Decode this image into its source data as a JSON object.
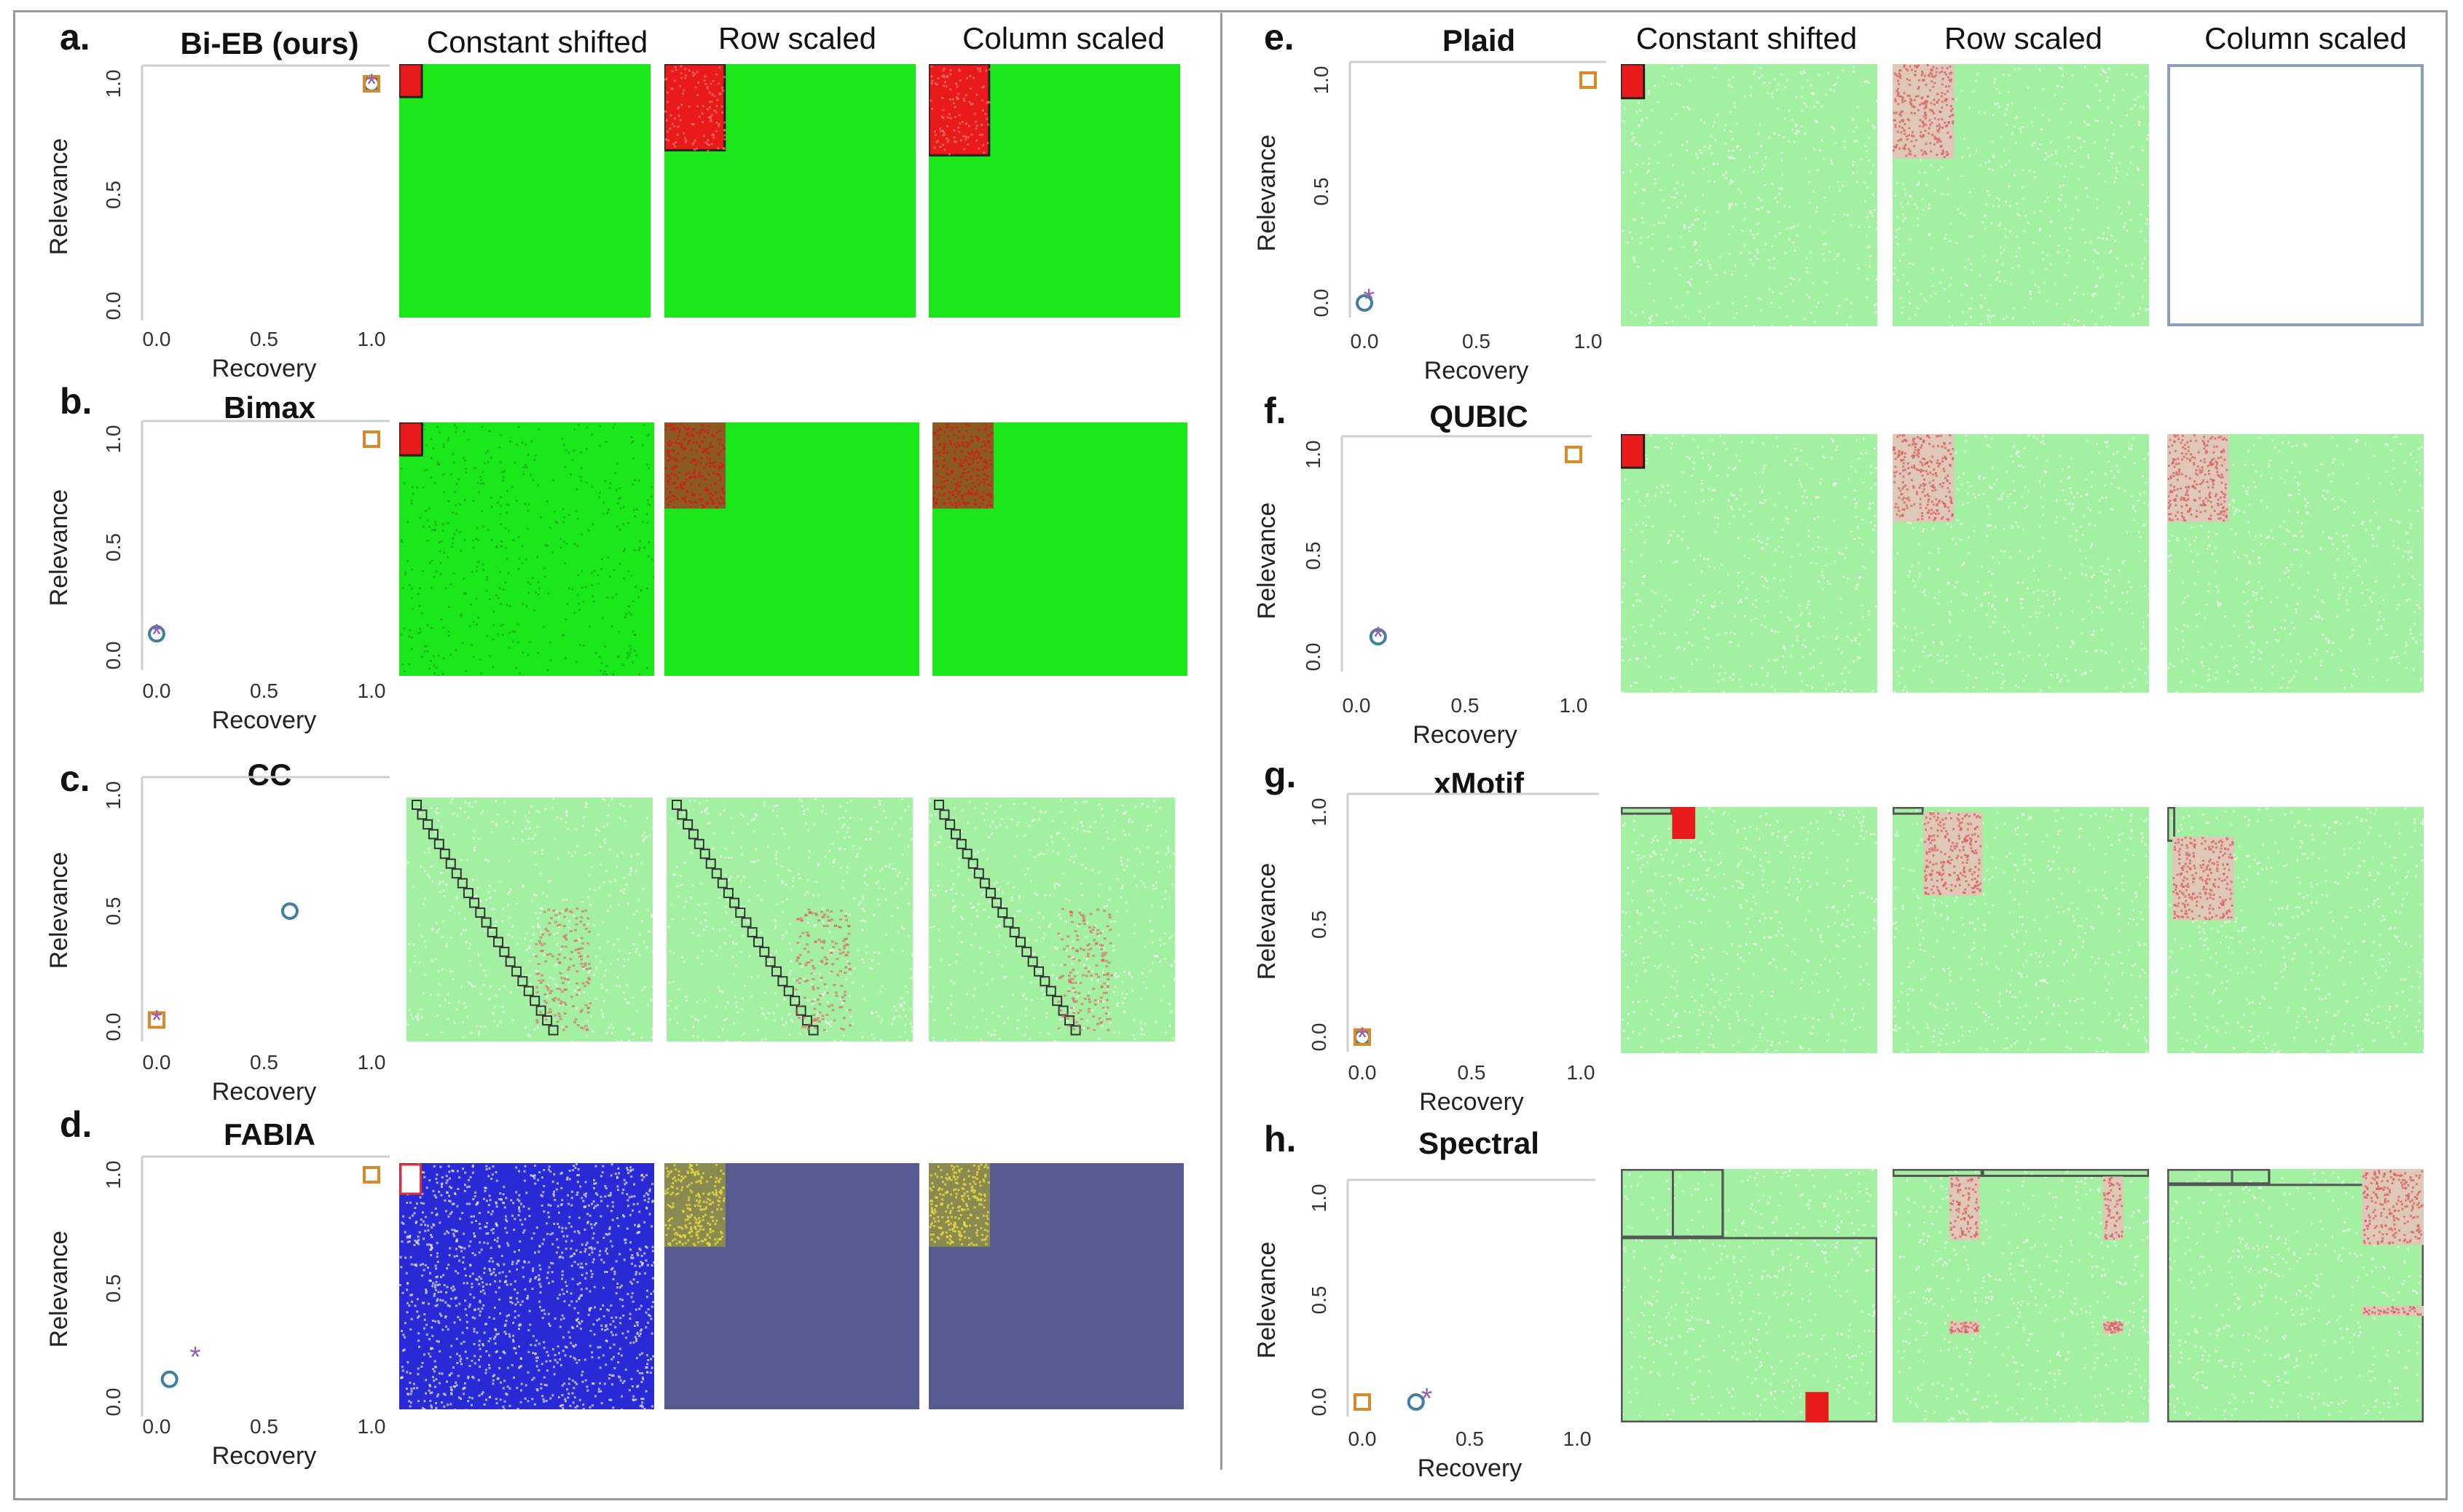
{
  "columns": [
    "Constant shifted",
    "Row scaled",
    "Column scaled"
  ],
  "colors": {
    "bright_green": "#1be81b",
    "light_green": "#a3f0a3",
    "blue": "#2929d6",
    "slate": "#575a90",
    "red": "#e81a1a",
    "circle": "#3f7fa0",
    "square": "#d88a2a",
    "star": "#9a60b0"
  },
  "chart_data": [
    {
      "type": "scatter",
      "panel": "a.",
      "title": "Bi-EB (ours)",
      "xlabel": "Recovery",
      "ylabel": "Relevance",
      "xlim": [
        0,
        1
      ],
      "ylim": [
        0,
        1
      ],
      "xticks": [
        "0.0",
        "0.5",
        "1.0"
      ],
      "yticks": [
        "0.0",
        "0.5",
        "1.0"
      ],
      "series": [
        {
          "marker": "circle",
          "x": [
            1.0
          ],
          "y": [
            1.0
          ]
        },
        {
          "marker": "square",
          "x": [
            1.0
          ],
          "y": [
            1.0
          ]
        },
        {
          "marker": "star",
          "x": [
            1.0
          ],
          "y": [
            1.0
          ]
        }
      ],
      "heatmaps": [
        {
          "bg": "bright_green",
          "noise": 0,
          "blocks": [
            {
              "x": 0,
              "y": 0,
              "w": 0.09,
              "h": 0.13,
              "c": "red",
              "o": true
            }
          ]
        },
        {
          "bg": "bright_green",
          "noise": 0,
          "blocks": [
            {
              "x": 0,
              "y": 0,
              "w": 0.24,
              "h": 0.34,
              "c": "red",
              "o": true,
              "speckle": true
            }
          ]
        },
        {
          "bg": "bright_green",
          "noise": 0,
          "blocks": [
            {
              "x": 0,
              "y": 0,
              "w": 0.24,
              "h": 0.36,
              "c": "red",
              "o": true,
              "speckle": true
            }
          ]
        }
      ]
    },
    {
      "type": "scatter",
      "panel": "b.",
      "title": "Bimax",
      "xlabel": "Recovery",
      "ylabel": "Relevance",
      "xlim": [
        0,
        1
      ],
      "ylim": [
        0,
        1
      ],
      "xticks": [
        "0.0",
        "0.5",
        "1.0"
      ],
      "yticks": [
        "0.0",
        "0.5",
        "1.0"
      ],
      "series": [
        {
          "marker": "circle",
          "x": [
            0.0
          ],
          "y": [
            0.1
          ]
        },
        {
          "marker": "square",
          "x": [
            1.0
          ],
          "y": [
            1.0
          ]
        },
        {
          "marker": "star",
          "x": [
            0.0
          ],
          "y": [
            0.1
          ]
        }
      ],
      "heatmaps": [
        {
          "bg": "bright_green",
          "noise": 1,
          "blocks": [
            {
              "x": 0,
              "y": 0,
              "w": 0.09,
              "h": 0.13,
              "c": "red",
              "o": true
            }
          ]
        },
        {
          "bg": "bright_green",
          "noise": 0,
          "blocks": [
            {
              "x": 0,
              "y": 0,
              "w": 0.24,
              "h": 0.34,
              "c": "mixed_rg"
            }
          ]
        },
        {
          "bg": "bright_green",
          "noise": 0,
          "blocks": [
            {
              "x": 0,
              "y": 0,
              "w": 0.24,
              "h": 0.34,
              "c": "mixed_rg"
            }
          ]
        }
      ]
    },
    {
      "type": "scatter",
      "panel": "c.",
      "title": "CC",
      "xlabel": "Recovery",
      "ylabel": "Relevance",
      "xlim": [
        0,
        1
      ],
      "ylim": [
        0,
        1
      ],
      "xticks": [
        "0.0",
        "0.5",
        "1.0"
      ],
      "yticks": [
        "0.0",
        "0.5",
        "1.0"
      ],
      "series": [
        {
          "marker": "circle",
          "x": [
            0.62
          ],
          "y": [
            0.5
          ]
        },
        {
          "marker": "square",
          "x": [
            0.0
          ],
          "y": [
            0.03
          ]
        },
        {
          "marker": "star",
          "x": [
            0.0
          ],
          "y": [
            0.03
          ]
        }
      ],
      "heatmaps": [
        {
          "bg": "light_green",
          "noise": 2,
          "stair": true,
          "blocks": []
        },
        {
          "bg": "light_green",
          "noise": 2,
          "stair": true,
          "blocks": []
        },
        {
          "bg": "light_green",
          "noise": 2,
          "stair": true,
          "blocks": []
        }
      ]
    },
    {
      "type": "scatter",
      "panel": "d.",
      "title": "FABIA",
      "xlabel": "Recovery",
      "ylabel": "Relevance",
      "xlim": [
        0,
        1
      ],
      "ylim": [
        0,
        1
      ],
      "xticks": [
        "0.0",
        "0.5",
        "1.0"
      ],
      "yticks": [
        "0.0",
        "0.5",
        "1.0"
      ],
      "series": [
        {
          "marker": "circle",
          "x": [
            0.06
          ],
          "y": [
            0.1
          ]
        },
        {
          "marker": "square",
          "x": [
            1.0
          ],
          "y": [
            1.0
          ]
        },
        {
          "marker": "star",
          "x": [
            0.18
          ],
          "y": [
            0.2
          ]
        }
      ],
      "heatmaps": [
        {
          "bg": "blue",
          "noise": 3,
          "blocks": [
            {
              "x": 0,
              "y": 0,
              "w": 0.09,
              "h": 0.13,
              "c": "white_outline"
            }
          ]
        },
        {
          "bg": "slate",
          "noise": 0,
          "blocks": [
            {
              "x": 0,
              "y": 0,
              "w": 0.24,
              "h": 0.34,
              "c": "mixed_yellow"
            }
          ]
        },
        {
          "bg": "slate",
          "noise": 0,
          "blocks": [
            {
              "x": 0,
              "y": 0,
              "w": 0.24,
              "h": 0.34,
              "c": "mixed_yellow"
            }
          ]
        }
      ]
    },
    {
      "type": "scatter",
      "panel": "e.",
      "title": "Plaid",
      "xlabel": "Recovery",
      "ylabel": "Relevance",
      "xlim": [
        0,
        1
      ],
      "ylim": [
        0,
        1
      ],
      "xticks": [
        "0.0",
        "0.5",
        "1.0"
      ],
      "yticks": [
        "0.0",
        "0.5",
        "1.0"
      ],
      "series": [
        {
          "marker": "circle",
          "x": [
            0.0
          ],
          "y": [
            0.0
          ]
        },
        {
          "marker": "square",
          "x": [
            1.0
          ],
          "y": [
            1.0
          ]
        },
        {
          "marker": "star",
          "x": [
            0.02
          ],
          "y": [
            0.02
          ]
        }
      ],
      "heatmaps": [
        {
          "bg": "light_green",
          "noise": 2,
          "blocks": [
            {
              "x": 0,
              "y": 0,
              "w": 0.09,
              "h": 0.13,
              "c": "red",
              "o": true
            }
          ]
        },
        {
          "bg": "light_green",
          "noise": 2,
          "blocks": [
            {
              "x": 0,
              "y": 0,
              "w": 0.24,
              "h": 0.36,
              "c": "mixed_pink"
            }
          ]
        },
        {
          "bg": "empty",
          "noise": 0,
          "blocks": []
        }
      ]
    },
    {
      "type": "scatter",
      "panel": "f.",
      "title": "QUBIC",
      "xlabel": "Recovery",
      "ylabel": "Relevance",
      "xlim": [
        0,
        1
      ],
      "ylim": [
        0,
        1
      ],
      "xticks": [
        "0.0",
        "0.5",
        "1.0"
      ],
      "yticks": [
        "0.0",
        "0.5",
        "1.0"
      ],
      "series": [
        {
          "marker": "circle",
          "x": [
            0.1
          ],
          "y": [
            0.1
          ]
        },
        {
          "marker": "square",
          "x": [
            1.0
          ],
          "y": [
            1.0
          ]
        },
        {
          "marker": "star",
          "x": [
            0.1
          ],
          "y": [
            0.1
          ]
        }
      ],
      "heatmaps": [
        {
          "bg": "light_green",
          "noise": 2,
          "blocks": [
            {
              "x": 0,
              "y": 0,
              "w": 0.09,
              "h": 0.13,
              "c": "red",
              "o": true
            }
          ]
        },
        {
          "bg": "light_green",
          "noise": 2,
          "blocks": [
            {
              "x": 0,
              "y": 0,
              "w": 0.24,
              "h": 0.34,
              "c": "mixed_pink"
            }
          ]
        },
        {
          "bg": "light_green",
          "noise": 2,
          "blocks": [
            {
              "x": 0,
              "y": 0,
              "w": 0.24,
              "h": 0.34,
              "c": "mixed_pink"
            }
          ]
        }
      ]
    },
    {
      "type": "scatter",
      "panel": "g.",
      "title": "xMotif",
      "xlabel": "Recovery",
      "ylabel": "Relevance",
      "xlim": [
        0,
        1
      ],
      "ylim": [
        0,
        1
      ],
      "xticks": [
        "0.0",
        "0.5",
        "1.0"
      ],
      "yticks": [
        "0.0",
        "0.5",
        "1.0"
      ],
      "series": [
        {
          "marker": "circle",
          "x": [
            0.0
          ],
          "y": [
            0.0
          ]
        },
        {
          "marker": "square",
          "x": [
            0.0
          ],
          "y": [
            0.0
          ]
        },
        {
          "marker": "star",
          "x": [
            0.0
          ],
          "y": [
            0.0
          ]
        }
      ],
      "heatmaps": [
        {
          "bg": "light_green",
          "noise": 2,
          "blocks": [
            {
              "x": 0,
              "y": 0,
              "w": 0.2,
              "h": 0.03,
              "c": "outline"
            },
            {
              "x": 0.2,
              "y": 0,
              "w": 0.09,
              "h": 0.13,
              "c": "red"
            }
          ]
        },
        {
          "bg": "light_green",
          "noise": 2,
          "blocks": [
            {
              "x": 0,
              "y": 0,
              "w": 0.12,
              "h": 0.03,
              "c": "outline"
            },
            {
              "x": 0.12,
              "y": 0.02,
              "w": 0.23,
              "h": 0.34,
              "c": "mixed_pink"
            }
          ]
        },
        {
          "bg": "light_green",
          "noise": 2,
          "blocks": [
            {
              "x": 0,
              "y": 0,
              "w": 0.03,
              "h": 0.14,
              "c": "outline"
            },
            {
              "x": 0.02,
              "y": 0.12,
              "w": 0.24,
              "h": 0.34,
              "c": "mixed_pink"
            }
          ]
        }
      ]
    },
    {
      "type": "scatter",
      "panel": "h.",
      "title": "Spectral",
      "xlabel": "Recovery",
      "ylabel": "Relevance",
      "xlim": [
        0,
        1
      ],
      "ylim": [
        0,
        1
      ],
      "xticks": [
        "0.0",
        "0.5",
        "1.0"
      ],
      "yticks": [
        "0.0",
        "0.5",
        "1.0"
      ],
      "series": [
        {
          "marker": "circle",
          "x": [
            0.25
          ],
          "y": [
            0.0
          ]
        },
        {
          "marker": "square",
          "x": [
            0.0
          ],
          "y": [
            0.0
          ]
        },
        {
          "marker": "star",
          "x": [
            0.3
          ],
          "y": [
            0.02
          ]
        }
      ],
      "heatmaps": [
        {
          "bg": "light_green",
          "noise": 2,
          "blocks": [
            {
              "x": 0,
              "y": 0,
              "w": 0.4,
              "h": 0.27,
              "c": "outline"
            },
            {
              "x": 0.2,
              "y": 0,
              "w": 0.2,
              "h": 0.27,
              "c": "outline"
            },
            {
              "x": 0,
              "y": 0.27,
              "w": 1,
              "h": 0.73,
              "c": "outline"
            },
            {
              "x": 0.72,
              "y": 0.88,
              "w": 0.09,
              "h": 0.12,
              "c": "red"
            }
          ]
        },
        {
          "bg": "light_green",
          "noise": 2,
          "blocks": [
            {
              "x": 0,
              "y": 0,
              "w": 0.35,
              "h": 0.03,
              "c": "outline"
            },
            {
              "x": 0.35,
              "y": 0,
              "w": 0.65,
              "h": 0.03,
              "c": "outline"
            },
            {
              "x": 0.22,
              "y": 0.03,
              "w": 0.12,
              "h": 0.25,
              "c": "mixed_pink"
            },
            {
              "x": 0.82,
              "y": 0.03,
              "w": 0.08,
              "h": 0.25,
              "c": "mixed_pink"
            },
            {
              "x": 0.22,
              "y": 0.6,
              "w": 0.12,
              "h": 0.05,
              "c": "mixed_pink"
            },
            {
              "x": 0.82,
              "y": 0.6,
              "w": 0.08,
              "h": 0.05,
              "c": "mixed_pink"
            }
          ]
        },
        {
          "bg": "light_green",
          "noise": 2,
          "blocks": [
            {
              "x": 0,
              "y": 0,
              "w": 0.4,
              "h": 0.06,
              "c": "outline"
            },
            {
              "x": 0.25,
              "y": 0,
              "w": 0.15,
              "h": 0.06,
              "c": "outline"
            },
            {
              "x": 0,
              "y": 0.06,
              "w": 1,
              "h": 0.94,
              "c": "outline"
            },
            {
              "x": 0.76,
              "y": 0,
              "w": 0.24,
              "h": 0.3,
              "c": "mixed_pink"
            },
            {
              "x": 0.76,
              "y": 0.54,
              "w": 0.24,
              "h": 0.04,
              "c": "mixed_pink"
            }
          ]
        }
      ]
    }
  ]
}
